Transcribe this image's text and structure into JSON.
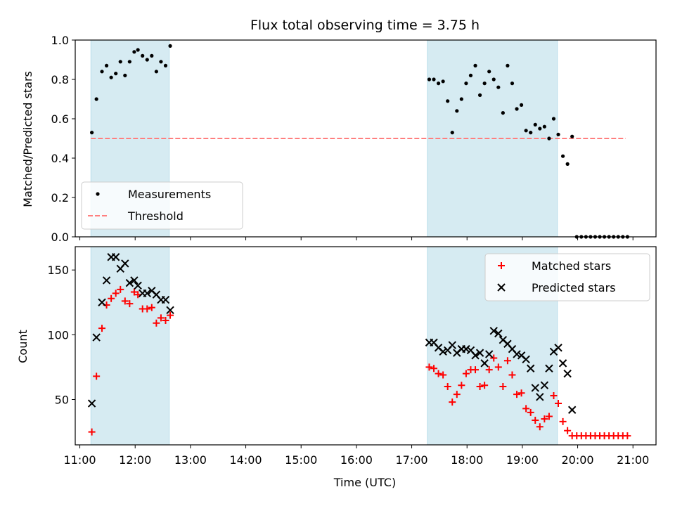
{
  "chart_data": [
    {
      "type": "scatter",
      "title": "Flux total observing time = 3.75 h",
      "xlabel": "",
      "ylabel": "Matched/Predicted stars",
      "ylim": [
        0,
        1.0
      ],
      "xlim": [
        "10:55",
        "21:25"
      ],
      "yticks": [
        "0.0",
        "0.2",
        "0.4",
        "0.6",
        "0.8",
        "1.0"
      ],
      "shaded_intervals": [
        [
          "11:12",
          "12:37"
        ],
        [
          "17:17",
          "19:38"
        ]
      ],
      "legend_position": "lower-left",
      "threshold": {
        "name": "Threshold",
        "y": 0.5,
        "x": [
          "11:12",
          "20:52"
        ],
        "color": "#ff7f7f"
      },
      "series": [
        {
          "name": "Measurements",
          "color": "#000000",
          "marker": "dot",
          "points": [
            [
              "11:13",
              0.53
            ],
            [
              "11:18",
              0.7
            ],
            [
              "11:24",
              0.84
            ],
            [
              "11:29",
              0.87
            ],
            [
              "11:34",
              0.81
            ],
            [
              "11:39",
              0.83
            ],
            [
              "11:44",
              0.89
            ],
            [
              "11:49",
              0.82
            ],
            [
              "11:54",
              0.89
            ],
            [
              "11:59",
              0.94
            ],
            [
              "12:03",
              0.95
            ],
            [
              "12:08",
              0.92
            ],
            [
              "12:13",
              0.9
            ],
            [
              "12:18",
              0.92
            ],
            [
              "12:23",
              0.84
            ],
            [
              "12:28",
              0.89
            ],
            [
              "12:33",
              0.87
            ],
            [
              "12:38",
              0.97
            ],
            [
              "17:19",
              0.8
            ],
            [
              "17:24",
              0.8
            ],
            [
              "17:29",
              0.78
            ],
            [
              "17:34",
              0.79
            ],
            [
              "17:39",
              0.69
            ],
            [
              "17:44",
              0.53
            ],
            [
              "17:49",
              0.64
            ],
            [
              "17:54",
              0.7
            ],
            [
              "17:59",
              0.78
            ],
            [
              "18:04",
              0.82
            ],
            [
              "18:09",
              0.87
            ],
            [
              "18:14",
              0.72
            ],
            [
              "18:19",
              0.78
            ],
            [
              "18:24",
              0.84
            ],
            [
              "18:29",
              0.8
            ],
            [
              "18:34",
              0.76
            ],
            [
              "18:39",
              0.63
            ],
            [
              "18:44",
              0.87
            ],
            [
              "18:49",
              0.78
            ],
            [
              "18:54",
              0.65
            ],
            [
              "18:59",
              0.67
            ],
            [
              "19:04",
              0.54
            ],
            [
              "19:09",
              0.53
            ],
            [
              "19:14",
              0.57
            ],
            [
              "19:19",
              0.55
            ],
            [
              "19:24",
              0.56
            ],
            [
              "19:29",
              0.5
            ],
            [
              "19:34",
              0.6
            ],
            [
              "19:39",
              0.52
            ],
            [
              "19:44",
              0.41
            ],
            [
              "19:49",
              0.37
            ],
            [
              "19:54",
              0.51
            ],
            [
              "19:59",
              0.0
            ],
            [
              "20:04",
              0.0
            ],
            [
              "20:09",
              0.0
            ],
            [
              "20:14",
              0.0
            ],
            [
              "20:19",
              0.0
            ],
            [
              "20:24",
              0.0
            ],
            [
              "20:29",
              0.0
            ],
            [
              "20:34",
              0.0
            ],
            [
              "20:39",
              0.0
            ],
            [
              "20:44",
              0.0
            ],
            [
              "20:49",
              0.0
            ],
            [
              "20:54",
              0.0
            ]
          ]
        }
      ]
    },
    {
      "type": "scatter",
      "title": "",
      "xlabel": "Time (UTC)",
      "ylabel": "Count",
      "ylim": [
        15,
        168
      ],
      "xlim": [
        "10:55",
        "21:25"
      ],
      "yticks": [
        "50",
        "100",
        "150"
      ],
      "xticks": [
        "11:00",
        "12:00",
        "13:00",
        "14:00",
        "15:00",
        "16:00",
        "17:00",
        "18:00",
        "19:00",
        "20:00",
        "21:00"
      ],
      "shaded_intervals": [
        [
          "11:12",
          "12:37"
        ],
        [
          "17:17",
          "19:38"
        ]
      ],
      "legend_position": "upper-right",
      "series": [
        {
          "name": "Matched stars",
          "color": "#ff0000",
          "marker": "plus",
          "points": [
            [
              "11:13",
              25
            ],
            [
              "11:18",
              68
            ],
            [
              "11:24",
              105
            ],
            [
              "11:29",
              123
            ],
            [
              "11:34",
              128
            ],
            [
              "11:39",
              132
            ],
            [
              "11:44",
              135
            ],
            [
              "11:49",
              126
            ],
            [
              "11:54",
              124
            ],
            [
              "11:59",
              133
            ],
            [
              "12:03",
              131
            ],
            [
              "12:08",
              120
            ],
            [
              "12:13",
              120
            ],
            [
              "12:18",
              121
            ],
            [
              "12:23",
              109
            ],
            [
              "12:28",
              113
            ],
            [
              "12:33",
              111
            ],
            [
              "12:38",
              115
            ],
            [
              "17:19",
              75
            ],
            [
              "17:24",
              74
            ],
            [
              "17:29",
              70
            ],
            [
              "17:34",
              69
            ],
            [
              "17:39",
              60
            ],
            [
              "17:44",
              48
            ],
            [
              "17:49",
              54
            ],
            [
              "17:54",
              61
            ],
            [
              "17:59",
              70
            ],
            [
              "18:04",
              73
            ],
            [
              "18:09",
              73
            ],
            [
              "18:14",
              60
            ],
            [
              "18:19",
              61
            ],
            [
              "18:24",
              73
            ],
            [
              "18:29",
              82
            ],
            [
              "18:34",
              75
            ],
            [
              "18:39",
              60
            ],
            [
              "18:44",
              80
            ],
            [
              "18:49",
              69
            ],
            [
              "18:54",
              54
            ],
            [
              "18:59",
              55
            ],
            [
              "19:04",
              43
            ],
            [
              "19:09",
              40
            ],
            [
              "19:14",
              34
            ],
            [
              "19:19",
              29
            ],
            [
              "19:24",
              35
            ],
            [
              "19:29",
              37
            ],
            [
              "19:34",
              53
            ],
            [
              "19:39",
              47
            ],
            [
              "19:44",
              33
            ],
            [
              "19:49",
              26
            ],
            [
              "19:54",
              22
            ],
            [
              "19:59",
              22
            ],
            [
              "20:04",
              22
            ],
            [
              "20:09",
              22
            ],
            [
              "20:14",
              22
            ],
            [
              "20:19",
              22
            ],
            [
              "20:24",
              22
            ],
            [
              "20:29",
              22
            ],
            [
              "20:34",
              22
            ],
            [
              "20:39",
              22
            ],
            [
              "20:44",
              22
            ],
            [
              "20:49",
              22
            ],
            [
              "20:54",
              22
            ]
          ]
        },
        {
          "name": "Predicted stars",
          "color": "#000000",
          "marker": "x",
          "points": [
            [
              "11:13",
              47
            ],
            [
              "11:18",
              98
            ],
            [
              "11:24",
              125
            ],
            [
              "11:29",
              142
            ],
            [
              "11:34",
              160
            ],
            [
              "11:39",
              160
            ],
            [
              "11:44",
              151
            ],
            [
              "11:49",
              155
            ],
            [
              "11:54",
              140
            ],
            [
              "11:59",
              142
            ],
            [
              "12:03",
              138
            ],
            [
              "12:08",
              132
            ],
            [
              "12:13",
              132
            ],
            [
              "12:18",
              134
            ],
            [
              "12:23",
              131
            ],
            [
              "12:28",
              127
            ],
            [
              "12:33",
              127
            ],
            [
              "12:38",
              119
            ],
            [
              "17:19",
              94
            ],
            [
              "17:24",
              94
            ],
            [
              "17:29",
              90
            ],
            [
              "17:34",
              87
            ],
            [
              "17:39",
              88
            ],
            [
              "17:44",
              92
            ],
            [
              "17:49",
              86
            ],
            [
              "17:54",
              89
            ],
            [
              "17:59",
              89
            ],
            [
              "18:04",
              88
            ],
            [
              "18:09",
              84
            ],
            [
              "18:14",
              86
            ],
            [
              "18:19",
              78
            ],
            [
              "18:24",
              85
            ],
            [
              "18:29",
              103
            ],
            [
              "18:34",
              101
            ],
            [
              "18:39",
              96
            ],
            [
              "18:44",
              93
            ],
            [
              "18:49",
              89
            ],
            [
              "18:54",
              85
            ],
            [
              "18:59",
              84
            ],
            [
              "19:04",
              81
            ],
            [
              "19:09",
              74
            ],
            [
              "19:14",
              59
            ],
            [
              "19:19",
              52
            ],
            [
              "19:24",
              61
            ],
            [
              "19:29",
              74
            ],
            [
              "19:34",
              87
            ],
            [
              "19:39",
              90
            ],
            [
              "19:44",
              78
            ],
            [
              "19:49",
              70
            ],
            [
              "19:54",
              42
            ]
          ]
        }
      ]
    }
  ]
}
